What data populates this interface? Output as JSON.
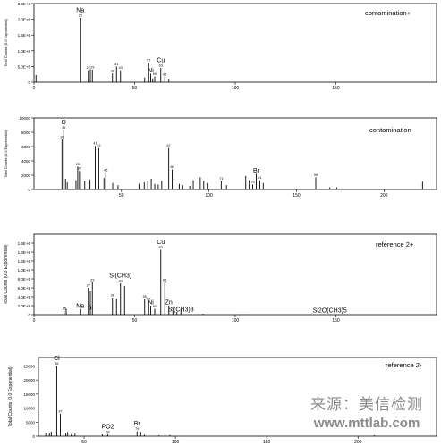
{
  "watermark": {
    "cn": "来源：美信检测",
    "url": "www.mttlab.com"
  },
  "chart_data": [
    {
      "type": "bar",
      "title": "contamination+",
      "ylabel": "Total Counts (0.0 Exponential)",
      "xlim": [
        0,
        200
      ],
      "ylim": [
        0,
        2500000.0
      ],
      "xticks": [
        0,
        50,
        100,
        150
      ],
      "yticks": [
        0,
        500000,
        1000000,
        1500000,
        2000000,
        2500000
      ],
      "ytick_labels": [
        "0",
        "5.0E+5",
        "1.0E+6",
        "1.5E+6",
        "2.0E+6",
        "2.5E+6"
      ],
      "peaks": [
        {
          "x": 1,
          "y": 230000
        },
        {
          "x": 23,
          "y": 2050000
        },
        {
          "x": 27,
          "y": 380000
        },
        {
          "x": 28,
          "y": 420000
        },
        {
          "x": 29,
          "y": 400000
        },
        {
          "x": 39,
          "y": 280000
        },
        {
          "x": 41,
          "y": 500000
        },
        {
          "x": 43,
          "y": 380000
        },
        {
          "x": 55,
          "y": 150000
        },
        {
          "x": 57,
          "y": 620000
        },
        {
          "x": 58,
          "y": 270000
        },
        {
          "x": 59,
          "y": 120000
        },
        {
          "x": 60,
          "y": 180000
        },
        {
          "x": 63,
          "y": 450000
        },
        {
          "x": 65,
          "y": 170000
        },
        {
          "x": 67,
          "y": 110000
        }
      ],
      "labels": [
        {
          "x": 23,
          "y": 2050000,
          "text": "Na",
          "mass": "23"
        },
        {
          "x": 27,
          "y": 380000,
          "text": "",
          "mass": "27"
        },
        {
          "x": 29,
          "y": 400000,
          "text": "",
          "mass": "29"
        },
        {
          "x": 39,
          "y": 280000,
          "text": "",
          "mass": "39"
        },
        {
          "x": 41,
          "y": 500000,
          "text": "",
          "mass": "41"
        },
        {
          "x": 43,
          "y": 380000,
          "text": "",
          "mass": "43"
        },
        {
          "x": 57,
          "y": 620000,
          "text": "",
          "mass": "57"
        },
        {
          "x": 58,
          "y": 270000,
          "text": "Ni",
          "mass": ""
        },
        {
          "x": 60,
          "y": 180000,
          "text": "",
          "mass": "60"
        },
        {
          "x": 63,
          "y": 450000,
          "text": "Cu",
          "mass": "63"
        },
        {
          "x": 65,
          "y": 170000,
          "text": "",
          "mass": "65"
        }
      ]
    },
    {
      "type": "bar",
      "title": "contamination-",
      "ylabel": "Total Counts (0.0 Exponential)",
      "xlim": [
        0,
        230
      ],
      "ylim": [
        0,
        10000
      ],
      "xticks": [
        50,
        100,
        150,
        200
      ],
      "yticks": [
        0,
        2000,
        4000,
        6000,
        8000,
        10000
      ],
      "ytick_labels": [
        "0",
        "2000",
        "4000",
        "6000",
        "8000",
        "10000"
      ],
      "peaks": [
        {
          "x": 16,
          "y": 7000
        },
        {
          "x": 17,
          "y": 8300
        },
        {
          "x": 18,
          "y": 1500
        },
        {
          "x": 19,
          "y": 1000
        },
        {
          "x": 24,
          "y": 1300
        },
        {
          "x": 25,
          "y": 3200
        },
        {
          "x": 26,
          "y": 2600
        },
        {
          "x": 29,
          "y": 1200
        },
        {
          "x": 32,
          "y": 1400
        },
        {
          "x": 35,
          "y": 6100
        },
        {
          "x": 37,
          "y": 5800
        },
        {
          "x": 40,
          "y": 1600
        },
        {
          "x": 41,
          "y": 2400
        },
        {
          "x": 45,
          "y": 900
        },
        {
          "x": 48,
          "y": 600
        },
        {
          "x": 60,
          "y": 800
        },
        {
          "x": 63,
          "y": 1000
        },
        {
          "x": 65,
          "y": 1200
        },
        {
          "x": 67,
          "y": 1500
        },
        {
          "x": 69,
          "y": 800
        },
        {
          "x": 71,
          "y": 700
        },
        {
          "x": 73,
          "y": 1200
        },
        {
          "x": 77,
          "y": 5800
        },
        {
          "x": 79,
          "y": 2800
        },
        {
          "x": 80,
          "y": 1100
        },
        {
          "x": 83,
          "y": 800
        },
        {
          "x": 85,
          "y": 600
        },
        {
          "x": 89,
          "y": 500
        },
        {
          "x": 91,
          "y": 1300
        },
        {
          "x": 95,
          "y": 1700
        },
        {
          "x": 97,
          "y": 1200
        },
        {
          "x": 99,
          "y": 900
        },
        {
          "x": 107,
          "y": 1200
        },
        {
          "x": 110,
          "y": 600
        },
        {
          "x": 121,
          "y": 1900
        },
        {
          "x": 123,
          "y": 1300
        },
        {
          "x": 125,
          "y": 700
        },
        {
          "x": 127,
          "y": 2200
        },
        {
          "x": 129,
          "y": 1300
        },
        {
          "x": 131,
          "y": 900
        },
        {
          "x": 161,
          "y": 1700
        },
        {
          "x": 169,
          "y": 300
        },
        {
          "x": 173,
          "y": 300
        },
        {
          "x": 222,
          "y": 1100
        }
      ],
      "labels": [
        {
          "x": 16,
          "y": 7000,
          "text": "",
          "mass": "16"
        },
        {
          "x": 17,
          "y": 8300,
          "text": "O",
          "mass": "35"
        },
        {
          "x": 25,
          "y": 3200,
          "text": "",
          "mass": "25"
        },
        {
          "x": 26,
          "y": 2600,
          "text": "",
          "mass": "37"
        },
        {
          "x": 35,
          "y": 6100,
          "text": "",
          "mass": "41"
        },
        {
          "x": 37,
          "y": 5800,
          "text": "",
          "mass": "43"
        },
        {
          "x": 41,
          "y": 2400,
          "text": "",
          "mass": "45"
        },
        {
          "x": 77,
          "y": 5800,
          "text": "",
          "mass": "67"
        },
        {
          "x": 79,
          "y": 2800,
          "text": "",
          "mass": "80"
        },
        {
          "x": 107,
          "y": 1200,
          "text": "",
          "mass": "71"
        },
        {
          "x": 125,
          "y": 700,
          "text": "",
          "mass": "79"
        },
        {
          "x": 127,
          "y": 2200,
          "text": "Br",
          "mass": ""
        },
        {
          "x": 129,
          "y": 1300,
          "text": "",
          "mass": "81"
        },
        {
          "x": 161,
          "y": 1700,
          "text": "",
          "mass": "99"
        }
      ]
    },
    {
      "type": "bar",
      "title": "reference 2+",
      "ylabel": "Total Counts (0.0 Exponential)",
      "xlim": [
        0,
        200
      ],
      "ylim": [
        0,
        1800000
      ],
      "xticks": [
        0,
        50,
        100,
        150
      ],
      "yticks": [
        0,
        200000,
        400000,
        600000,
        800000,
        1000000,
        1200000,
        1400000,
        1600000
      ],
      "ytick_labels": [
        "0",
        "2.0E+5",
        "4.0E+5",
        "6.0E+5",
        "8.0E+5",
        "1.0E+6",
        "1.2E+6",
        "1.4E+6",
        "1.6E+6"
      ],
      "peaks": [
        {
          "x": 15,
          "y": 80000
        },
        {
          "x": 16,
          "y": 130000
        },
        {
          "x": 23,
          "y": 120000
        },
        {
          "x": 27,
          "y": 600000
        },
        {
          "x": 28,
          "y": 520000
        },
        {
          "x": 29,
          "y": 720000
        },
        {
          "x": 39,
          "y": 380000
        },
        {
          "x": 41,
          "y": 360000
        },
        {
          "x": 43,
          "y": 700000
        },
        {
          "x": 45,
          "y": 640000
        },
        {
          "x": 55,
          "y": 350000
        },
        {
          "x": 57,
          "y": 300000
        },
        {
          "x": 58,
          "y": 200000
        },
        {
          "x": 60,
          "y": 130000
        },
        {
          "x": 63,
          "y": 1450000
        },
        {
          "x": 65,
          "y": 720000
        },
        {
          "x": 67,
          "y": 200000
        },
        {
          "x": 69,
          "y": 100000
        },
        {
          "x": 71,
          "y": 60000
        },
        {
          "x": 73,
          "y": 120000
        },
        {
          "x": 84,
          "y": 20000
        },
        {
          "x": 104,
          "y": 8000
        }
      ],
      "labels": [
        {
          "x": 15,
          "y": 80000,
          "text": "",
          "mass": "15"
        },
        {
          "x": 23,
          "y": 120000,
          "text": "Na",
          "mass": ""
        },
        {
          "x": 27,
          "y": 600000,
          "text": "",
          "mass": "27"
        },
        {
          "x": 28,
          "y": 80000,
          "text": "Si",
          "mass": ""
        },
        {
          "x": 29,
          "y": 720000,
          "text": "",
          "mass": "29"
        },
        {
          "x": 39,
          "y": 380000,
          "text": "",
          "mass": "39"
        },
        {
          "x": 43,
          "y": 700000,
          "text": "Si(CH3)",
          "mass": "43"
        },
        {
          "x": 55,
          "y": 350000,
          "text": "",
          "mass": "55"
        },
        {
          "x": 57,
          "y": 300000,
          "text": "",
          "mass": "57"
        },
        {
          "x": 58,
          "y": 200000,
          "text": "Ni",
          "mass": ""
        },
        {
          "x": 60,
          "y": 130000,
          "text": "",
          "mass": "60"
        },
        {
          "x": 63,
          "y": 1450000,
          "text": "Cu",
          "mass": "63"
        },
        {
          "x": 65,
          "y": 720000,
          "text": "",
          "mass": "65"
        },
        {
          "x": 67,
          "y": 200000,
          "text": "Zn",
          "mass": ""
        },
        {
          "x": 69,
          "y": 100000,
          "text": "",
          "mass": "69"
        },
        {
          "x": 73,
          "y": 40000,
          "text": "Si(CH3)3",
          "mass": ""
        },
        {
          "x": 147,
          "y": 20000,
          "text": "Si2O(CH3)5",
          "mass": ""
        }
      ]
    },
    {
      "type": "bar",
      "title": "reference 2-",
      "ylabel": "Total Counts (0.0 Exponential)",
      "xlim": [
        25,
        243
      ],
      "ylim": [
        0,
        28000
      ],
      "xticks": [
        50,
        100,
        150,
        200
      ],
      "yticks": [
        0,
        5000,
        10000,
        15000,
        20000,
        25000
      ],
      "ytick_labels": [
        "0",
        "5000",
        "10000",
        "15000",
        "20000",
        "25000"
      ],
      "peaks": [
        {
          "x": 29,
          "y": 1200
        },
        {
          "x": 31,
          "y": 1000
        },
        {
          "x": 32,
          "y": 1600
        },
        {
          "x": 35,
          "y": 25000
        },
        {
          "x": 37,
          "y": 8000
        },
        {
          "x": 40,
          "y": 1100
        },
        {
          "x": 41,
          "y": 1500
        },
        {
          "x": 43,
          "y": 700
        },
        {
          "x": 45,
          "y": 900
        },
        {
          "x": 60,
          "y": 600
        },
        {
          "x": 63,
          "y": 700
        },
        {
          "x": 79,
          "y": 1700
        },
        {
          "x": 81,
          "y": 1500
        },
        {
          "x": 83,
          "y": 500
        },
        {
          "x": 91,
          "y": 300
        },
        {
          "x": 97,
          "y": 400
        },
        {
          "x": 209,
          "y": 300
        }
      ],
      "labels": [
        {
          "x": 35,
          "y": 25000,
          "text": "Cl",
          "mass": "35"
        },
        {
          "x": 37,
          "y": 8000,
          "text": "",
          "mass": "37"
        },
        {
          "x": 63,
          "y": 700,
          "text": "PO2",
          "mass": "63"
        },
        {
          "x": 79,
          "y": 1700,
          "text": "Br",
          "mass": "79"
        }
      ]
    }
  ]
}
